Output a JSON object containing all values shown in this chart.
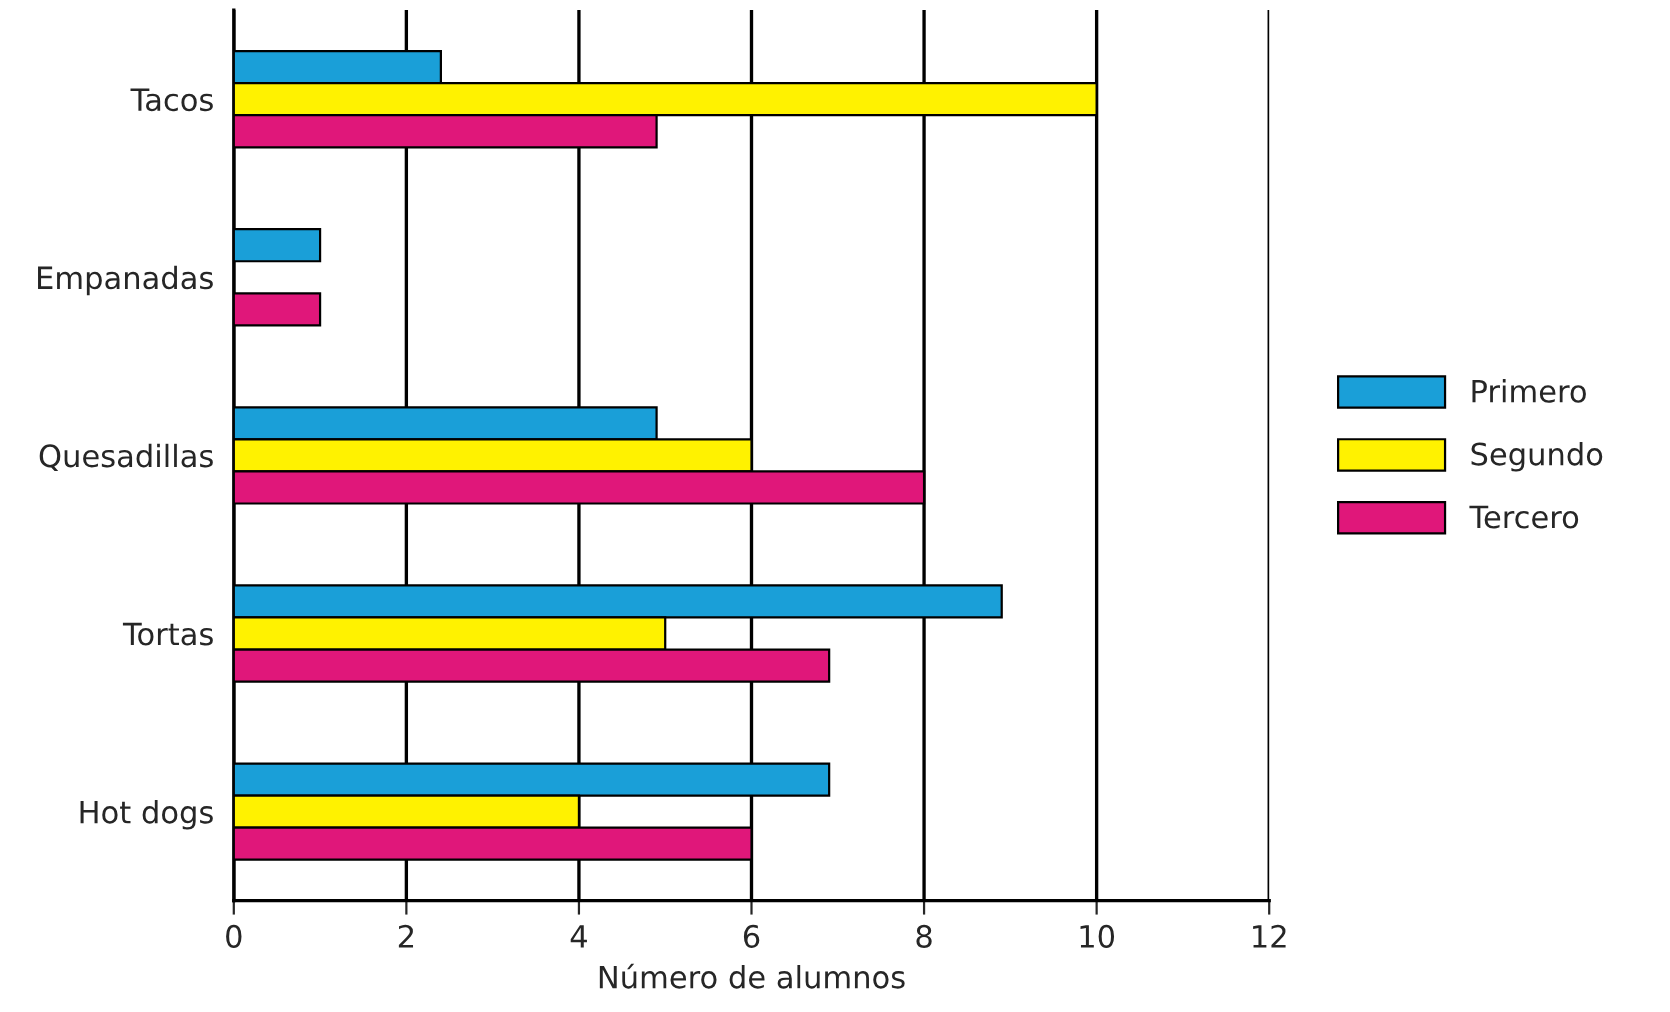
{
  "chart_data": {
    "type": "bar",
    "orientation": "horizontal",
    "xlabel": "Número de alumnos",
    "categories": [
      "Tacos",
      "Empanadas",
      "Quesadillas",
      "Tortas",
      "Hot dogs"
    ],
    "series": [
      {
        "name": "Primero",
        "color": "#1a9fd8",
        "values": [
          2.4,
          1,
          4.9,
          8.9,
          6.9
        ]
      },
      {
        "name": "Segundo",
        "color": "#fff200",
        "values": [
          10,
          null,
          6,
          5,
          4
        ]
      },
      {
        "name": "Tercero",
        "color": "#e0177a",
        "values": [
          4.9,
          1,
          8,
          6.9,
          6
        ]
      }
    ],
    "xlim": [
      0,
      12
    ],
    "xticks": [
      0,
      2,
      4,
      6,
      8,
      10,
      12
    ],
    "grid": "x",
    "legend": "right"
  }
}
